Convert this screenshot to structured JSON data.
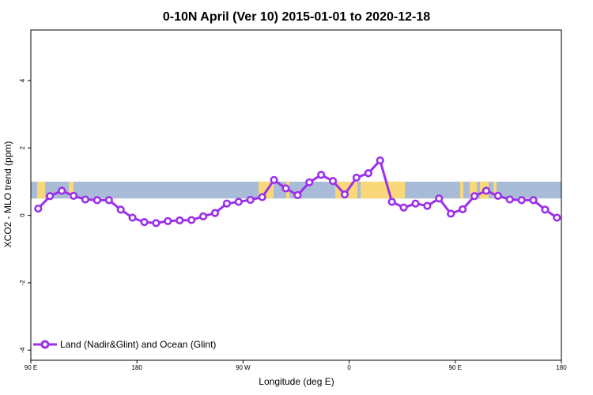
{
  "chart_data": {
    "type": "line",
    "title": "0-10N April (Ver 10)   2015-01-01 to 2020-12-18",
    "xlabel": "Longitude (deg E)",
    "ylabel": "XCO2 - MLO trend (ppm)",
    "xlim": [
      20,
      380
    ],
    "ylim": [
      -4.3,
      5.5
    ],
    "grid": false,
    "legend_position": "bottom-left",
    "x_ticks": [
      {
        "value": 20,
        "label": "90 E"
      },
      {
        "value": 92,
        "label": "180"
      },
      {
        "value": 164,
        "label": "90 W"
      },
      {
        "value": 236,
        "label": "0"
      },
      {
        "value": 308,
        "label": "90 E"
      },
      {
        "value": 380,
        "label": "180"
      }
    ],
    "y_ticks": [
      {
        "value": -4,
        "label": "-4"
      },
      {
        "value": -2,
        "label": "-2"
      },
      {
        "value": 0,
        "label": "0"
      },
      {
        "value": 2,
        "label": "2"
      },
      {
        "value": 4,
        "label": "4"
      }
    ],
    "background_band": {
      "ymin": 0.5,
      "ymax": 1.0,
      "ocean_color": "#a8bcd8",
      "land_color": "#f8d878"
    },
    "series": [
      {
        "name": "Land (Nadir&Glint) and Ocean (Glint)",
        "color": "#9b30e8",
        "x": [
          25,
          33,
          41,
          49,
          57,
          65,
          73,
          81,
          89,
          97,
          105,
          113,
          121,
          129,
          137,
          145,
          153,
          161,
          169,
          177,
          185,
          193,
          201,
          209,
          217,
          225,
          233,
          241,
          249,
          257,
          265,
          273,
          281,
          289,
          297,
          305,
          313,
          321,
          329,
          337,
          345,
          353,
          361,
          369,
          377
        ],
        "values": [
          0.2,
          0.57,
          0.73,
          0.58,
          0.47,
          0.45,
          0.45,
          0.17,
          -0.07,
          -0.2,
          -0.23,
          -0.17,
          -0.15,
          -0.14,
          -0.03,
          0.07,
          0.35,
          0.4,
          0.46,
          0.54,
          1.05,
          0.8,
          0.6,
          0.98,
          1.2,
          1.02,
          0.62,
          1.12,
          1.25,
          1.63,
          0.4,
          0.23,
          0.35,
          0.28,
          0.5,
          0.05,
          0.18,
          0.57,
          0.73,
          0.58,
          0.47,
          0.45,
          0.45,
          0.17,
          -0.07
        ]
      }
    ]
  }
}
